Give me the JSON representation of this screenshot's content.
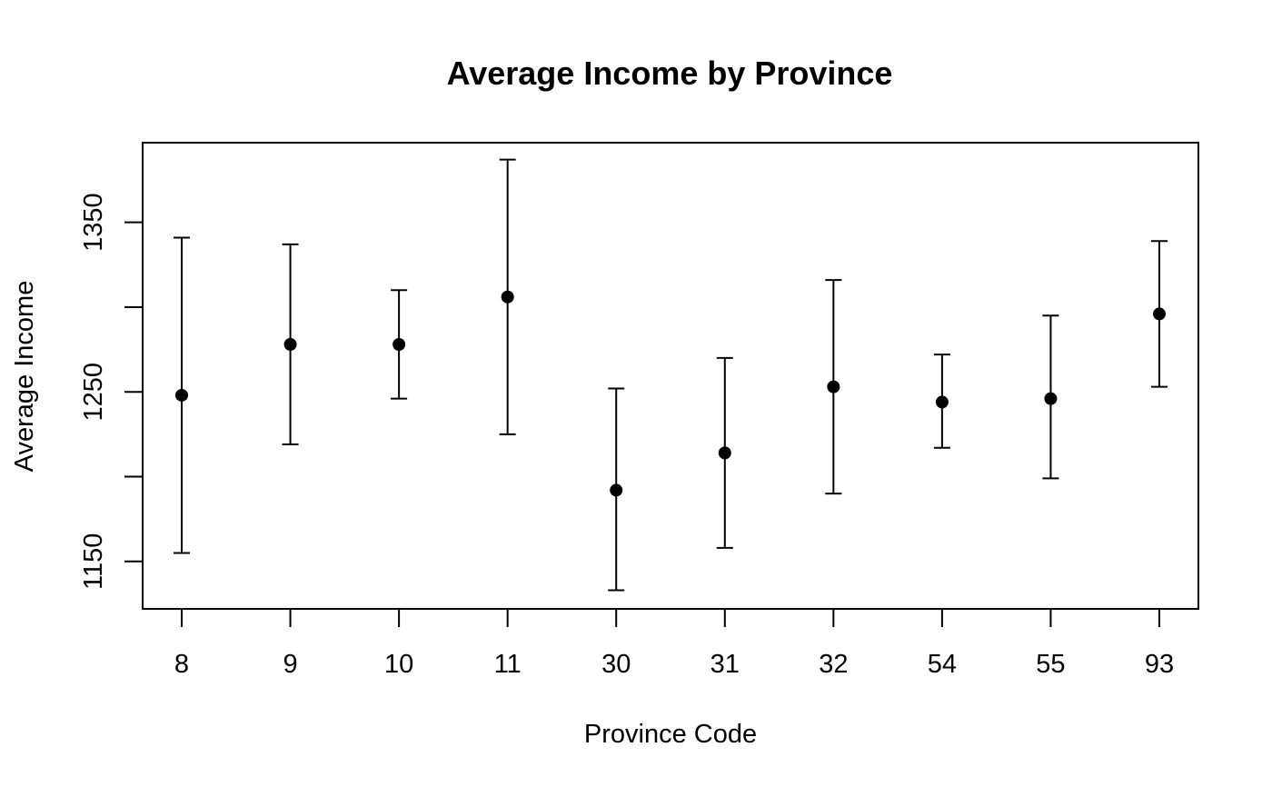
{
  "chart_data": {
    "type": "scatter",
    "title": "Average Income by Province",
    "xlabel": "Province Code",
    "ylabel": "Average Income",
    "categories": [
      "8",
      "9",
      "10",
      "11",
      "30",
      "31",
      "32",
      "54",
      "55",
      "93"
    ],
    "series": [
      {
        "values": [
          1248,
          1278,
          1278,
          1306,
          1192,
          1214,
          1253,
          1244,
          1246,
          1296
        ],
        "lower": [
          1155,
          1219,
          1246,
          1225,
          1133,
          1158,
          1190,
          1217,
          1199,
          1253
        ],
        "upper": [
          1341,
          1337,
          1310,
          1387,
          1252,
          1270,
          1316,
          1272,
          1295,
          1339
        ]
      }
    ],
    "yticks": [
      1150,
      1250,
      1350
    ],
    "yminor_ticks": [
      1200,
      1300
    ],
    "ylim": [
      1122,
      1397
    ],
    "grid": false,
    "legend": "none"
  }
}
